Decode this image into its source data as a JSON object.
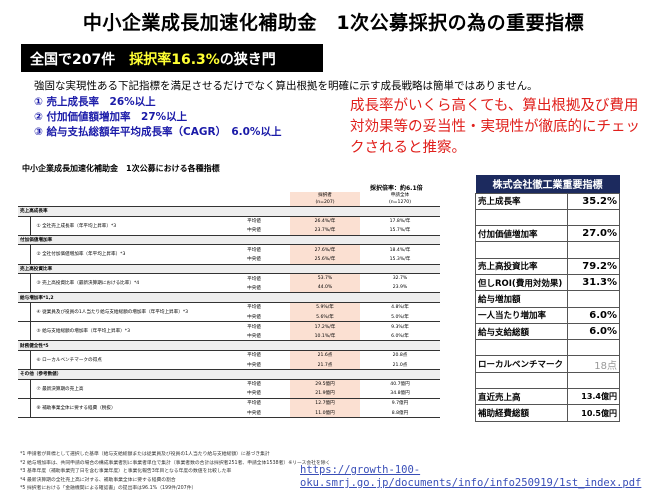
{
  "title": "中小企業成長加速化補助金　1次公募採択の為の重要指標",
  "banner": {
    "prefix": "全国で207件　",
    "highlight": "採択率16.3%",
    "suffix": "の狭き門"
  },
  "intro": "強固な実現性ある下記指標を満足させるだけでなく算出根拠を明確に示す成長戦略は簡単ではありません。",
  "criteria": [
    "① 売上成長率　26%以上",
    "② 付加価値額増加率　27%以上",
    "③ 給与支払総額年平均成長率（CAGR）　6.0%以上"
  ],
  "callout": "成長率がいくら高くても、算出根拠及び費用対効果等の妥当性・実現性が徹底的にチェックされると推察。",
  "colors": {
    "banner_highlight": "#ffff33",
    "criteria": "#1a1aa8",
    "callout": "#e0201c",
    "adopted_bg": "#fbe0d2",
    "company_header": "#1c2a5e"
  },
  "table": {
    "title": "中小企業成長加速化補助金　1次公募における各種指標",
    "ratio": "採択倍率：約6.1倍",
    "col_adopted": [
      "採択者",
      "(n=207)"
    ],
    "col_all": [
      "申請全体",
      "(n=1270)"
    ],
    "sections": [
      {
        "name": "売上高成長率",
        "metrics": [
          {
            "label": "① 全社売上成長率（年平均上昇率）*3",
            "rows": [
              [
                "平均値",
                "26.4%/年",
                "17.8%/年"
              ],
              [
                "中央値",
                "23.7%/年",
                "15.7%/年"
              ]
            ]
          }
        ]
      },
      {
        "name": "付加価値増加率",
        "metrics": [
          {
            "label": "② 全社付加価値増加率（年平均上昇率）*3",
            "rows": [
              [
                "平均値",
                "27.6%/年",
                "18.4%/年"
              ],
              [
                "中央値",
                "25.6%/年",
                "15.3%/年"
              ]
            ]
          }
        ]
      },
      {
        "name": "売上高投資比率",
        "metrics": [
          {
            "label": "③ 売上高投資比率（最新決算期における比率）*4",
            "rows": [
              [
                "平均値",
                "53.7%",
                "32.7%"
              ],
              [
                "中央値",
                "44.0%",
                "23.9%"
              ]
            ]
          }
        ]
      },
      {
        "name": "給与増加率*1,2",
        "metrics": [
          {
            "label": "④ 従業員及び役員の1人当たり給与支給総額の増加率（年平均上昇率）*3",
            "rows": [
              [
                "平均値",
                "5.9%/年",
                "4.8%/年"
              ],
              [
                "中央値",
                "5.6%/年",
                "5.0%/年"
              ]
            ]
          },
          {
            "label": "⑤ 給与支給総額の増加率（年平均上昇率）*3",
            "rows": [
              [
                "平均値",
                "17.2%/年",
                "9.3%/年"
              ],
              [
                "中央値",
                "10.1%/年",
                "6.0%/年"
              ]
            ]
          }
        ]
      },
      {
        "name": "財務健全性*5",
        "metrics": [
          {
            "label": "⑥ ローカルベンチマークの得点",
            "rows": [
              [
                "平均値",
                "21.6点",
                "20.8点"
              ],
              [
                "中央値",
                "21.7点",
                "21.0点"
              ]
            ]
          }
        ]
      },
      {
        "name": "その他（参考数値）",
        "metrics": [
          {
            "label": "⑦ 最新決算期の売上高",
            "rows": [
              [
                "平均値",
                "29.5億円",
                "40.7億円"
              ],
              [
                "中央値",
                "21.9億円",
                "34.8億円"
              ]
            ]
          },
          {
            "label": "⑧ 補助事業全体に要する経費（税抜）",
            "rows": [
              [
                "平均値",
                "12.7億円",
                "9.7億円"
              ],
              [
                "中央値",
                "11.0億円",
                "8.8億円"
              ]
            ]
          }
        ]
      }
    ],
    "footnotes": [
      "*1 申請者が目標として選択した基準（給与支給総額または従業員及び役員の1人当たり給与支給総額）に基づき集計",
      "*2 給与増加率は、共同申請の場合の構成事業者別に事業者単位で集計（事業者数の合計は採択者251者、申請全体1538者）※リース会社を除く",
      "*3 基準年度（補助事業完了日を含む事業年度）と事業化報告3年目となる年度の数値を比較した率",
      "*4 最新決算期の全社売上高に対する、補助事業全体に要する経費の割合",
      "*5 採択者における「金融機関による確認書」の提出率は96.1%（199件/207件）"
    ]
  },
  "url": [
    "https://growth-100-",
    "oku.smrj.go.jp/documents/info/info250919/1st_index.pdf"
  ],
  "company": {
    "title": "株式会社徹工業重要指標",
    "rows": [
      {
        "label": "売上成長率",
        "value": "35.2%"
      },
      {
        "label": "",
        "value": ""
      },
      {
        "label": "付加価値増加率",
        "value": "27.0%"
      },
      {
        "label": "",
        "value": ""
      },
      {
        "label": "売上高投資比率",
        "value": "79.2%"
      },
      {
        "label": "但しROI(費用対効果)",
        "value": "31.3%"
      },
      {
        "label": "給与増加額",
        "value": ""
      },
      {
        "label": "一人当たり増加率",
        "value": "6.0%"
      },
      {
        "label": "給与支給総額",
        "value": "6.0%"
      },
      {
        "label": "",
        "value": ""
      },
      {
        "label": "ローカルベンチマーク",
        "value": "18点",
        "style": "gray"
      },
      {
        "label": "",
        "value": ""
      },
      {
        "label": "直近売上高",
        "value": "13.4億円",
        "style": "sm"
      },
      {
        "label": "補助経費総額",
        "value": "10.5億円",
        "style": "sm"
      }
    ]
  }
}
